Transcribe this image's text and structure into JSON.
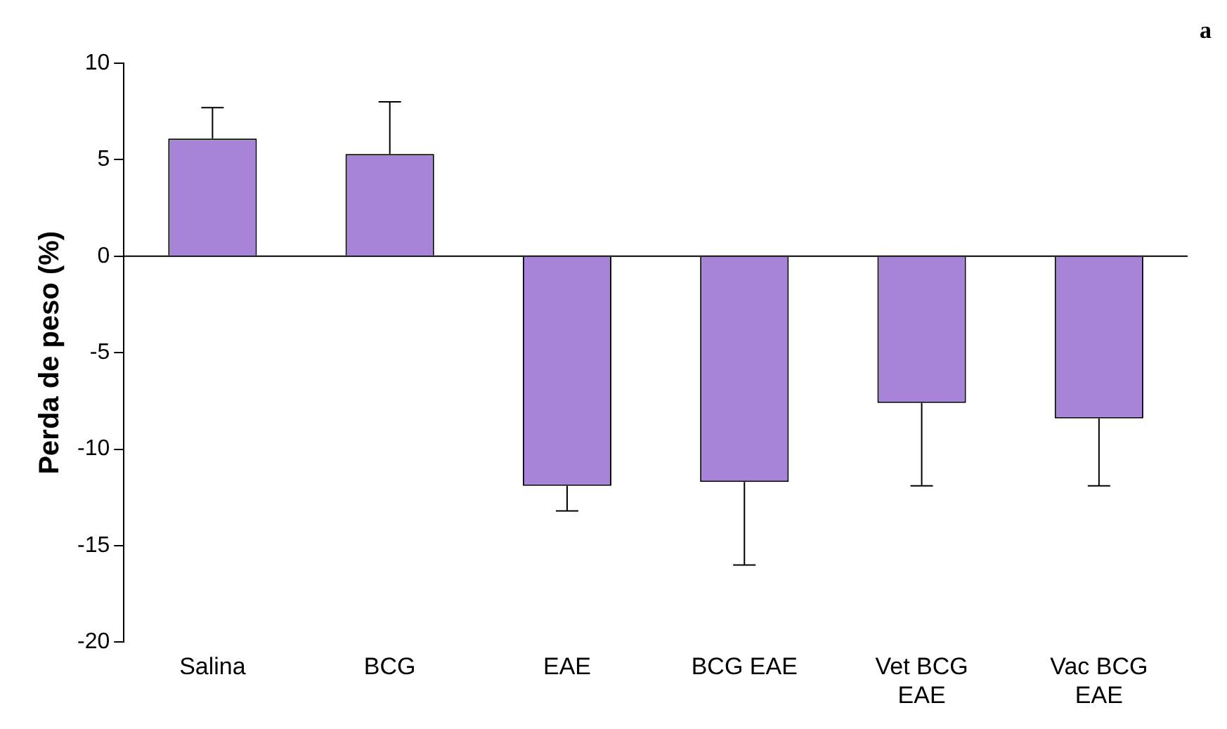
{
  "chart_data": {
    "type": "bar",
    "ylabel": "Perda de peso (%)",
    "annotations": [
      "a"
    ],
    "categories": [
      "Salina",
      "BCG",
      "EAE",
      "BCG EAE",
      "Vet BCG EAE",
      "Vac BCG EAE"
    ],
    "values": [
      6.1,
      5.3,
      -11.9,
      -11.7,
      -7.6,
      -8.4
    ],
    "errors": [
      [
        6.1,
        7.7
      ],
      [
        5.3,
        8.0
      ],
      [
        -13.2,
        -11.9
      ],
      [
        -16.0,
        -11.7
      ],
      [
        -11.9,
        -7.6
      ],
      [
        -11.9,
        -8.4
      ]
    ],
    "color": "#a884d8",
    "ylim": [
      -20,
      10
    ],
    "yticks": [
      -20,
      -15,
      -10,
      -5,
      0,
      5,
      10
    ],
    "legend": false
  }
}
